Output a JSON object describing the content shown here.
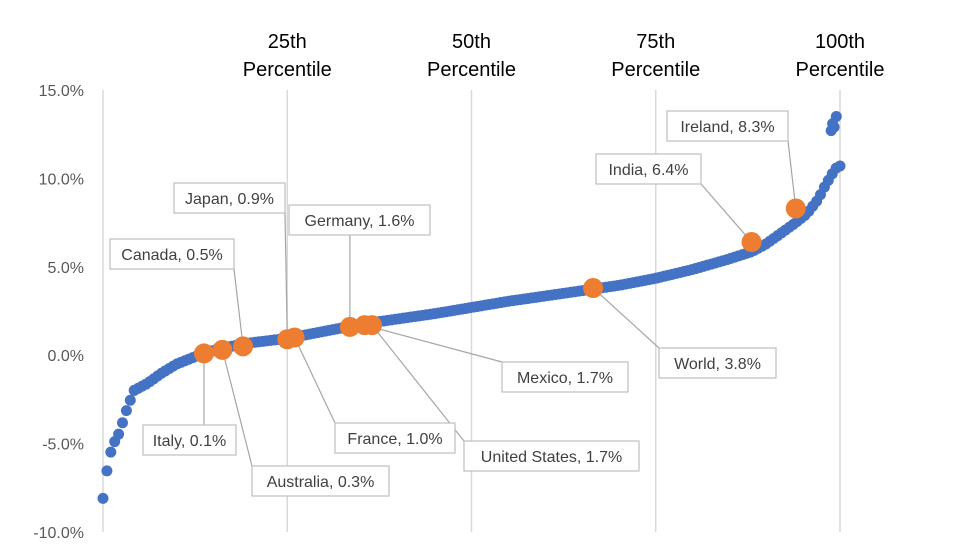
{
  "chart_data": {
    "type": "scatter",
    "ylim": [
      -10,
      15
    ],
    "ytick_step": 5,
    "grid": "vertical percentile lines",
    "legend": "none",
    "colors": {
      "series": "#4472C4",
      "highlight": "#ED7D31",
      "axis": "#D9D9D9",
      "callout_border": "#BFBFBF",
      "callout_line": "#A6A6A6"
    },
    "y_tick_labels": [
      "-10.0%",
      "-5.0%",
      "0.0%",
      "5.0%",
      "10.0%",
      "15.0%"
    ],
    "percentile_lines": [
      {
        "pct": 25,
        "line1": "25th",
        "line2": "Percentile"
      },
      {
        "pct": 50,
        "line1": "50th",
        "line2": "Percentile"
      },
      {
        "pct": 75,
        "line1": "75th",
        "line2": "Percentile"
      },
      {
        "pct": 100,
        "line1": "100th",
        "line2": "Percentile"
      }
    ],
    "knots": [
      [
        0.0,
        -8.1
      ],
      [
        0.5,
        -6.6
      ],
      [
        1.2,
        -5.2
      ],
      [
        2.2,
        -4.4
      ],
      [
        3.2,
        -3.1
      ],
      [
        4.2,
        -2.0
      ],
      [
        6.0,
        -1.6
      ],
      [
        8.0,
        -1.0
      ],
      [
        10.0,
        -0.5
      ],
      [
        13.0,
        0.0
      ],
      [
        16.0,
        0.4
      ],
      [
        20.0,
        0.7
      ],
      [
        25.0,
        0.95
      ],
      [
        30.0,
        1.35
      ],
      [
        35.0,
        1.75
      ],
      [
        40.0,
        2.05
      ],
      [
        45.0,
        2.35
      ],
      [
        50.0,
        2.7
      ],
      [
        55.0,
        3.05
      ],
      [
        60.0,
        3.35
      ],
      [
        65.0,
        3.65
      ],
      [
        70.0,
        3.95
      ],
      [
        75.0,
        4.35
      ],
      [
        80.0,
        4.85
      ],
      [
        85.0,
        5.45
      ],
      [
        88.0,
        5.85
      ],
      [
        90.0,
        6.3
      ],
      [
        92.0,
        6.9
      ],
      [
        94.0,
        7.5
      ],
      [
        95.5,
        8.0
      ],
      [
        97.0,
        8.8
      ],
      [
        98.0,
        9.6
      ],
      [
        99.0,
        10.3
      ],
      [
        99.5,
        10.6
      ],
      [
        100.0,
        10.7
      ]
    ],
    "extra_points": [
      [
        98.8,
        12.7
      ],
      [
        99.2,
        12.9
      ],
      [
        99.5,
        13.5
      ],
      [
        99.0,
        13.1
      ]
    ],
    "highlighted": [
      {
        "label": "Italy, 0.1%",
        "x": 13.7,
        "y": 0.1
      },
      {
        "label": "Australia, 0.3%",
        "x": 16.2,
        "y": 0.3
      },
      {
        "label": "Canada, 0.5%",
        "x": 19.0,
        "y": 0.5
      },
      {
        "label": "Japan, 0.9%",
        "x": 25.0,
        "y": 0.9
      },
      {
        "label": "France, 1.0%",
        "x": 26.0,
        "y": 1.0
      },
      {
        "label": "Germany, 1.6%",
        "x": 33.5,
        "y": 1.6
      },
      {
        "label": "Mexico, 1.7%",
        "x": 35.5,
        "y": 1.7
      },
      {
        "label": "United States, 1.7%",
        "x": 36.5,
        "y": 1.7
      },
      {
        "label": "World, 3.8%",
        "x": 66.5,
        "y": 3.8
      },
      {
        "label": "India, 6.4%",
        "x": 88.0,
        "y": 6.4
      },
      {
        "label": "Ireland, 8.3%",
        "x": 94.0,
        "y": 8.3
      }
    ]
  }
}
